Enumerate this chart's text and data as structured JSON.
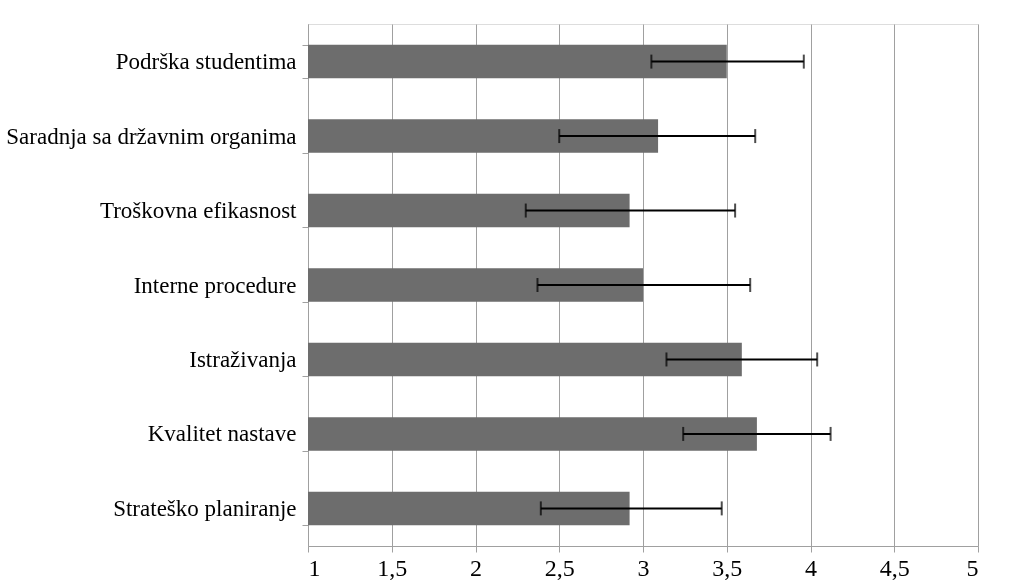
{
  "chart_data": {
    "type": "bar",
    "orientation": "horizontal",
    "categories": [
      "Podrška studentima",
      "Saradnja sa državnim organima",
      "Troškovna efikasnost",
      "Interne procedure",
      "Istraživanja",
      "Kvalitet nastave",
      "Strateško planiranje"
    ],
    "values": [
      3.5,
      3.09,
      2.92,
      3.0,
      3.59,
      3.68,
      2.92
    ],
    "errors": [
      [
        3.05,
        3.96
      ],
      [
        2.5,
        3.67
      ],
      [
        2.3,
        3.55
      ],
      [
        2.37,
        3.64
      ],
      [
        3.14,
        4.04
      ],
      [
        3.24,
        4.12
      ],
      [
        2.39,
        3.47
      ]
    ],
    "color": "#6d6d6d",
    "xlim": [
      1,
      5
    ],
    "xticks": [
      1,
      {
        "value": 1.5,
        "label": "1,5"
      },
      2,
      {
        "value": 2.5,
        "label": "2,5"
      },
      3,
      {
        "value": 3.5,
        "label": "3,5"
      },
      4,
      {
        "value": 4.5,
        "label": "4,5"
      },
      5
    ],
    "grid": "x"
  }
}
